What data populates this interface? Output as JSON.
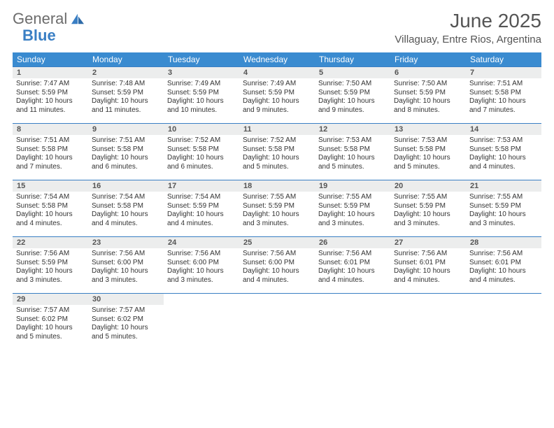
{
  "brand": {
    "part1": "General",
    "part2": "Blue"
  },
  "title": "June 2025",
  "location": "Villaguay, Entre Rios, Argentina",
  "colors": {
    "header_bg": "#3a8bd0",
    "header_text": "#ffffff",
    "daynum_bg": "#eceded",
    "daynum_text": "#555555",
    "rule": "#3a7fc4",
    "body_text": "#333333",
    "page_bg": "#ffffff",
    "brand_gray": "#6c6c6c",
    "brand_blue": "#3a7fc4"
  },
  "typography": {
    "body_pt": 10,
    "daynum_pt": 11,
    "dow_pt": 12,
    "title_pt": 28,
    "location_pt": 15
  },
  "days_of_week": [
    "Sunday",
    "Monday",
    "Tuesday",
    "Wednesday",
    "Thursday",
    "Friday",
    "Saturday"
  ],
  "weeks": [
    [
      {
        "n": "1",
        "sunrise": "Sunrise: 7:47 AM",
        "sunset": "Sunset: 5:59 PM",
        "daylight": "Daylight: 10 hours and 11 minutes."
      },
      {
        "n": "2",
        "sunrise": "Sunrise: 7:48 AM",
        "sunset": "Sunset: 5:59 PM",
        "daylight": "Daylight: 10 hours and 11 minutes."
      },
      {
        "n": "3",
        "sunrise": "Sunrise: 7:49 AM",
        "sunset": "Sunset: 5:59 PM",
        "daylight": "Daylight: 10 hours and 10 minutes."
      },
      {
        "n": "4",
        "sunrise": "Sunrise: 7:49 AM",
        "sunset": "Sunset: 5:59 PM",
        "daylight": "Daylight: 10 hours and 9 minutes."
      },
      {
        "n": "5",
        "sunrise": "Sunrise: 7:50 AM",
        "sunset": "Sunset: 5:59 PM",
        "daylight": "Daylight: 10 hours and 9 minutes."
      },
      {
        "n": "6",
        "sunrise": "Sunrise: 7:50 AM",
        "sunset": "Sunset: 5:59 PM",
        "daylight": "Daylight: 10 hours and 8 minutes."
      },
      {
        "n": "7",
        "sunrise": "Sunrise: 7:51 AM",
        "sunset": "Sunset: 5:58 PM",
        "daylight": "Daylight: 10 hours and 7 minutes."
      }
    ],
    [
      {
        "n": "8",
        "sunrise": "Sunrise: 7:51 AM",
        "sunset": "Sunset: 5:58 PM",
        "daylight": "Daylight: 10 hours and 7 minutes."
      },
      {
        "n": "9",
        "sunrise": "Sunrise: 7:51 AM",
        "sunset": "Sunset: 5:58 PM",
        "daylight": "Daylight: 10 hours and 6 minutes."
      },
      {
        "n": "10",
        "sunrise": "Sunrise: 7:52 AM",
        "sunset": "Sunset: 5:58 PM",
        "daylight": "Daylight: 10 hours and 6 minutes."
      },
      {
        "n": "11",
        "sunrise": "Sunrise: 7:52 AM",
        "sunset": "Sunset: 5:58 PM",
        "daylight": "Daylight: 10 hours and 5 minutes."
      },
      {
        "n": "12",
        "sunrise": "Sunrise: 7:53 AM",
        "sunset": "Sunset: 5:58 PM",
        "daylight": "Daylight: 10 hours and 5 minutes."
      },
      {
        "n": "13",
        "sunrise": "Sunrise: 7:53 AM",
        "sunset": "Sunset: 5:58 PM",
        "daylight": "Daylight: 10 hours and 5 minutes."
      },
      {
        "n": "14",
        "sunrise": "Sunrise: 7:53 AM",
        "sunset": "Sunset: 5:58 PM",
        "daylight": "Daylight: 10 hours and 4 minutes."
      }
    ],
    [
      {
        "n": "15",
        "sunrise": "Sunrise: 7:54 AM",
        "sunset": "Sunset: 5:58 PM",
        "daylight": "Daylight: 10 hours and 4 minutes."
      },
      {
        "n": "16",
        "sunrise": "Sunrise: 7:54 AM",
        "sunset": "Sunset: 5:58 PM",
        "daylight": "Daylight: 10 hours and 4 minutes."
      },
      {
        "n": "17",
        "sunrise": "Sunrise: 7:54 AM",
        "sunset": "Sunset: 5:59 PM",
        "daylight": "Daylight: 10 hours and 4 minutes."
      },
      {
        "n": "18",
        "sunrise": "Sunrise: 7:55 AM",
        "sunset": "Sunset: 5:59 PM",
        "daylight": "Daylight: 10 hours and 3 minutes."
      },
      {
        "n": "19",
        "sunrise": "Sunrise: 7:55 AM",
        "sunset": "Sunset: 5:59 PM",
        "daylight": "Daylight: 10 hours and 3 minutes."
      },
      {
        "n": "20",
        "sunrise": "Sunrise: 7:55 AM",
        "sunset": "Sunset: 5:59 PM",
        "daylight": "Daylight: 10 hours and 3 minutes."
      },
      {
        "n": "21",
        "sunrise": "Sunrise: 7:55 AM",
        "sunset": "Sunset: 5:59 PM",
        "daylight": "Daylight: 10 hours and 3 minutes."
      }
    ],
    [
      {
        "n": "22",
        "sunrise": "Sunrise: 7:56 AM",
        "sunset": "Sunset: 5:59 PM",
        "daylight": "Daylight: 10 hours and 3 minutes."
      },
      {
        "n": "23",
        "sunrise": "Sunrise: 7:56 AM",
        "sunset": "Sunset: 6:00 PM",
        "daylight": "Daylight: 10 hours and 3 minutes."
      },
      {
        "n": "24",
        "sunrise": "Sunrise: 7:56 AM",
        "sunset": "Sunset: 6:00 PM",
        "daylight": "Daylight: 10 hours and 3 minutes."
      },
      {
        "n": "25",
        "sunrise": "Sunrise: 7:56 AM",
        "sunset": "Sunset: 6:00 PM",
        "daylight": "Daylight: 10 hours and 4 minutes."
      },
      {
        "n": "26",
        "sunrise": "Sunrise: 7:56 AM",
        "sunset": "Sunset: 6:01 PM",
        "daylight": "Daylight: 10 hours and 4 minutes."
      },
      {
        "n": "27",
        "sunrise": "Sunrise: 7:56 AM",
        "sunset": "Sunset: 6:01 PM",
        "daylight": "Daylight: 10 hours and 4 minutes."
      },
      {
        "n": "28",
        "sunrise": "Sunrise: 7:56 AM",
        "sunset": "Sunset: 6:01 PM",
        "daylight": "Daylight: 10 hours and 4 minutes."
      }
    ],
    [
      {
        "n": "29",
        "sunrise": "Sunrise: 7:57 AM",
        "sunset": "Sunset: 6:02 PM",
        "daylight": "Daylight: 10 hours and 5 minutes."
      },
      {
        "n": "30",
        "sunrise": "Sunrise: 7:57 AM",
        "sunset": "Sunset: 6:02 PM",
        "daylight": "Daylight: 10 hours and 5 minutes."
      },
      null,
      null,
      null,
      null,
      null
    ]
  ]
}
